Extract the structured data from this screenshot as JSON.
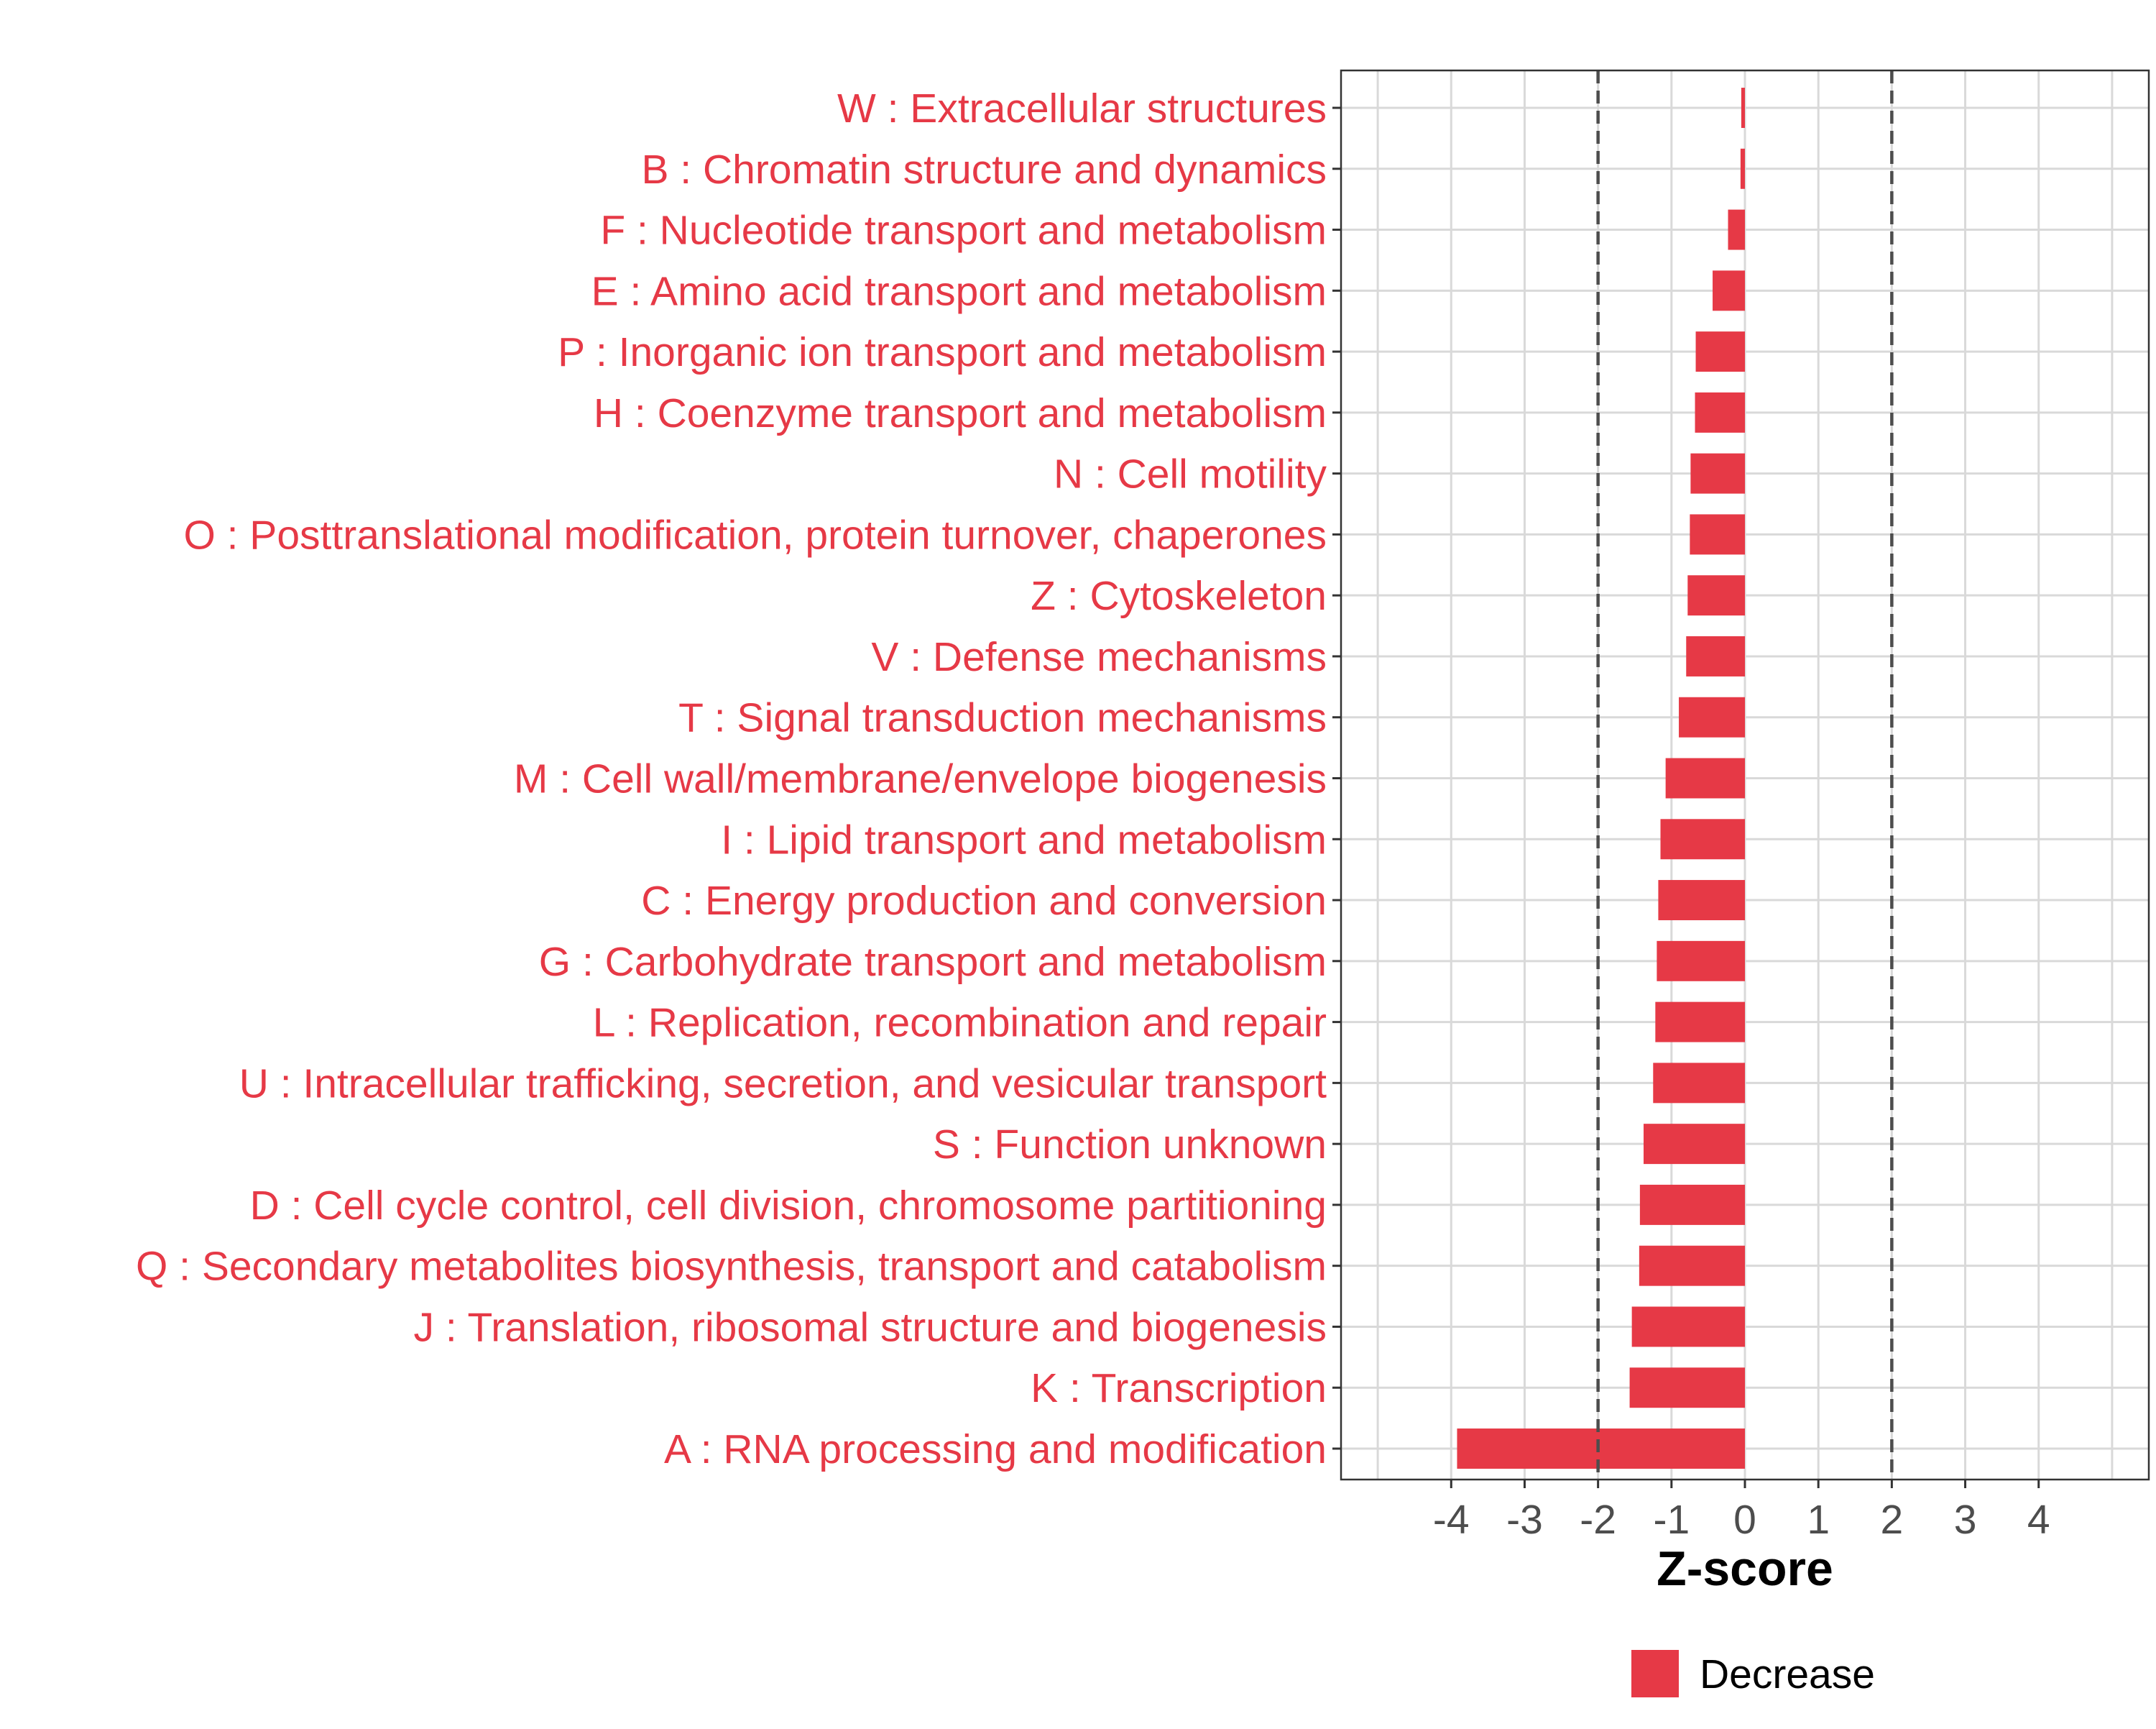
{
  "chart_data": {
    "type": "bar",
    "orientation": "horizontal",
    "categories": [
      "W : Extracellular structures",
      "B : Chromatin structure and dynamics",
      "F : Nucleotide transport and metabolism",
      "E : Amino acid transport and metabolism",
      "P : Inorganic ion transport and metabolism",
      "H : Coenzyme transport and metabolism",
      "N : Cell motility",
      "O : Posttranslational modification, protein turnover, chaperones",
      "Z : Cytoskeleton",
      "V : Defense mechanisms",
      "T : Signal transduction mechanisms",
      "M : Cell wall/membrane/envelope biogenesis",
      "I : Lipid transport and metabolism",
      "C : Energy production and conversion",
      "G : Carbohydrate transport and metabolism",
      "L : Replication, recombination and repair",
      "U : Intracellular trafficking, secretion, and vesicular transport",
      "S : Function unknown",
      "D : Cell cycle control, cell division, chromosome partitioning",
      "Q : Secondary metabolites biosynthesis, transport and catabolism",
      "J : Translation, ribosomal structure and biogenesis",
      "K : Transcription",
      "A : RNA processing and modification"
    ],
    "series": [
      {
        "name": "Decrease",
        "values": [
          -0.05,
          -0.06,
          -0.23,
          -0.44,
          -0.67,
          -0.68,
          -0.74,
          -0.75,
          -0.78,
          -0.8,
          -0.9,
          -1.08,
          -1.15,
          -1.18,
          -1.2,
          -1.22,
          -1.25,
          -1.38,
          -1.43,
          -1.44,
          -1.54,
          -1.57,
          -3.92
        ]
      }
    ],
    "xlabel": "Z-score",
    "ylabel": "",
    "xlim": [
      -5.5,
      5.5
    ],
    "xticks": [
      -4,
      -3,
      -2,
      -1,
      0,
      1,
      2,
      3,
      4
    ],
    "xtick_labels": [
      "-4",
      "-3",
      "-2",
      "-1",
      "0",
      "1",
      "2",
      "3",
      "4"
    ],
    "reference_lines": [
      -2,
      2
    ],
    "grid": true,
    "legend_position": "bottom",
    "legend": [
      {
        "label": "Decrease",
        "color": "#E63946"
      }
    ],
    "colors": {
      "bar": "#E63946",
      "category_label": "#E63946",
      "tick_label": "#4D4D4D",
      "grid": "#D9D9D9",
      "reference_line": "#4D4D4D",
      "panel_border": "#333333"
    }
  }
}
